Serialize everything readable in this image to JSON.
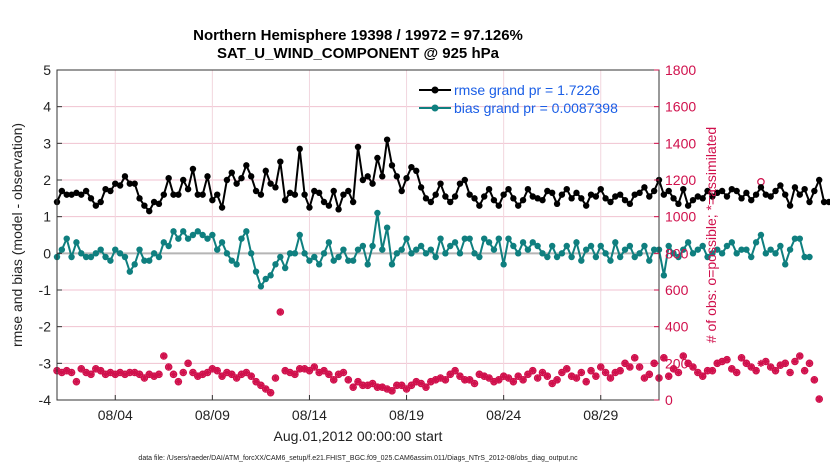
{
  "chart_data": {
    "type": "line",
    "title": "Northern Hemisphere 19398 / 19972 = 97.126%",
    "subtitle": "SAT_U_WIND_COMPONENT @ 925 hPa",
    "ylabel": "rmse and bias (model - observation)",
    "y2label": "# of obs: o=possible; *=assimilated",
    "xlabel": "Aug.01,2012 00:00:00 start",
    "footnote": "data file: /Users/raeder/DAI/ATM_forcXX/CAM6_setup/f.e21.FHIST_BGC.f09_025.CAM6assim.011/Diags_NTrS_2012-08/obs_diag_output.nc",
    "xlim": [
      1,
      32
    ],
    "ylim": [
      -4,
      5
    ],
    "y2lim": [
      0,
      1800
    ],
    "yticks": [
      "-4",
      "-3",
      "-2",
      "-1",
      "0",
      "1",
      "2",
      "3",
      "4",
      "5"
    ],
    "y2ticks": [
      "0",
      "200",
      "400",
      "600",
      "800",
      "1000",
      "1200",
      "1400",
      "1600",
      "1800"
    ],
    "xticks": [
      {
        "value": 4,
        "label": "08/04"
      },
      {
        "value": 9,
        "label": "08/09"
      },
      {
        "value": 14,
        "label": "08/14"
      },
      {
        "value": 19,
        "label": "08/19"
      },
      {
        "value": 24,
        "label": "08/24"
      },
      {
        "value": 29,
        "label": "08/29"
      }
    ],
    "x_start": 1.0,
    "x_step": 0.25,
    "series": [
      {
        "name": "rmse grand pr = 1.7226",
        "color": "#000000",
        "axis": "left",
        "values": [
          1.4,
          1.7,
          1.6,
          1.6,
          1.65,
          1.6,
          1.7,
          1.5,
          1.3,
          1.4,
          1.75,
          1.7,
          1.9,
          1.85,
          2.1,
          1.9,
          1.9,
          1.5,
          1.3,
          1.15,
          1.4,
          1.35,
          1.6,
          2.05,
          1.6,
          1.6,
          2.0,
          1.75,
          2.3,
          1.6,
          1.6,
          2.1,
          1.45,
          1.6,
          1.25,
          2.0,
          2.2,
          1.9,
          2.05,
          2.4,
          2.1,
          1.7,
          1.6,
          2.25,
          1.9,
          1.8,
          2.5,
          1.45,
          1.65,
          1.6,
          2.85,
          1.6,
          1.25,
          1.7,
          1.65,
          1.4,
          1.3,
          1.7,
          1.2,
          1.6,
          1.7,
          1.4,
          2.9,
          2.0,
          2.1,
          1.9,
          2.6,
          2.1,
          3.1,
          2.4,
          2.1,
          1.7,
          2.05,
          2.35,
          2.25,
          1.8,
          1.5,
          1.4,
          1.6,
          1.9,
          1.55,
          1.4,
          1.55,
          1.9,
          2.0,
          1.6,
          1.5,
          1.3,
          1.55,
          1.75,
          1.45,
          1.3,
          1.6,
          1.75,
          1.5,
          1.3,
          1.45,
          1.75,
          1.55,
          1.5,
          1.45,
          1.7,
          1.65,
          1.35,
          1.6,
          1.75,
          1.5,
          1.65,
          1.5,
          1.3,
          1.6,
          1.55,
          1.75,
          1.5,
          1.4,
          1.55,
          1.6,
          1.45,
          1.35,
          1.6,
          1.65,
          1.8,
          1.55,
          1.7,
          2.0,
          1.6,
          1.7,
          1.5,
          1.35,
          1.75,
          1.3,
          1.45,
          1.55,
          1.5,
          1.7,
          1.55,
          1.65,
          1.7,
          1.55,
          1.75,
          1.7,
          1.5,
          1.65,
          1.45,
          1.6,
          1.8,
          1.6,
          1.55,
          1.7,
          1.85,
          1.6,
          1.3,
          1.8,
          1.6,
          1.75,
          1.4,
          1.7,
          2.0,
          1.4,
          1.4
        ]
      },
      {
        "name": "bias grand pr = 0.0087398",
        "color": "#0f7f7f",
        "axis": "left",
        "values": [
          -0.1,
          0.1,
          0.4,
          -0.1,
          0.3,
          0.0,
          -0.1,
          -0.1,
          0.0,
          0.1,
          -0.1,
          -0.2,
          0.1,
          0.0,
          -0.1,
          -0.5,
          -0.3,
          0.1,
          -0.2,
          -0.2,
          0.0,
          -0.1,
          0.3,
          0.2,
          0.6,
          0.4,
          0.6,
          0.4,
          0.5,
          0.6,
          0.5,
          0.4,
          0.5,
          0.1,
          0.3,
          0.0,
          -0.2,
          -0.3,
          0.4,
          0.6,
          0.0,
          -0.5,
          -0.9,
          -0.7,
          -0.6,
          -0.3,
          -0.1,
          -0.4,
          0.0,
          0.0,
          0.5,
          0.0,
          -0.2,
          -0.1,
          -0.3,
          0.0,
          0.3,
          -0.2,
          -0.1,
          0.1,
          -0.2,
          -0.2,
          0.1,
          0.2,
          -0.3,
          0.2,
          1.1,
          0.1,
          0.7,
          -0.3,
          0.0,
          0.1,
          0.4,
          0.0,
          0.1,
          0.2,
          0.0,
          0.1,
          -0.1,
          0.4,
          0.0,
          0.2,
          0.3,
          0.0,
          0.4,
          0.4,
          0.0,
          -0.1,
          0.4,
          0.3,
          0.1,
          0.4,
          -0.3,
          0.4,
          0.2,
          0.0,
          0.3,
          0.1,
          0.3,
          0.2,
          0.0,
          -0.1,
          0.2,
          -0.1,
          0.0,
          0.2,
          -0.1,
          0.3,
          -0.2,
          0.1,
          0.2,
          -0.1,
          0.2,
          0.0,
          -0.2,
          0.3,
          -0.1,
          0.1,
          0.2,
          -0.1,
          0.0,
          0.2,
          -0.2,
          0.1,
          0.1,
          -0.6,
          0.2,
          0.0,
          -0.1,
          0.1,
          0.3,
          0.0,
          0.1,
          0.2,
          -0.1,
          0.0,
          0.1,
          0.0,
          0.2,
          0.3,
          0.0,
          0.1,
          0.1,
          -0.1,
          0.3,
          0.5,
          0.0,
          0.1,
          0.0,
          0.2,
          -0.3,
          0.1,
          0.4,
          0.4,
          -0.1,
          -0.1
        ]
      },
      {
        "name": "# of obs assimilated",
        "color": "#d0104c",
        "axis": "right",
        "values": [
          160,
          150,
          160,
          150,
          100,
          170,
          150,
          140,
          170,
          160,
          140,
          150,
          140,
          150,
          140,
          150,
          150,
          140,
          120,
          140,
          130,
          140,
          240,
          180,
          140,
          100,
          150,
          200,
          150,
          130,
          140,
          150,
          170,
          160,
          130,
          150,
          140,
          120,
          140,
          150,
          130,
          100,
          80,
          60,
          40,
          120,
          480,
          160,
          150,
          140,
          170,
          170,
          160,
          180,
          150,
          160,
          140,
          110,
          140,
          150,
          110,
          70,
          100,
          80,
          80,
          90,
          70,
          70,
          60,
          50,
          80,
          80,
          60,
          80,
          100,
          90,
          70,
          100,
          110,
          120,
          110,
          140,
          160,
          130,
          110,
          110,
          90,
          140,
          130,
          120,
          100,
          110,
          130,
          120,
          100,
          130,
          110,
          140,
          160,
          120,
          150,
          130,
          90,
          110,
          150,
          170,
          130,
          120,
          150,
          100,
          160,
          130,
          180,
          150,
          120,
          150,
          160,
          200,
          180,
          230,
          180,
          120,
          140,
          200,
          120,
          230,
          130,
          170,
          150,
          240,
          200,
          180,
          150,
          130,
          160,
          160,
          200,
          210,
          220,
          170,
          150,
          230,
          200,
          180,
          160,
          200,
          210,
          180,
          160,
          190,
          200,
          150,
          210,
          240,
          160,
          200,
          110,
          5
        ]
      },
      {
        "name": "# of obs possible",
        "color": "#d0104c",
        "axis": "right",
        "values": [
          160,
          150,
          160,
          150,
          100,
          170,
          150,
          140,
          170,
          160,
          140,
          150,
          140,
          150,
          140,
          150,
          150,
          140,
          120,
          140,
          130,
          140,
          240,
          180,
          140,
          100,
          150,
          200,
          150,
          130,
          140,
          150,
          170,
          160,
          130,
          150,
          140,
          120,
          140,
          150,
          130,
          100,
          80,
          60,
          40,
          120,
          480,
          160,
          150,
          140,
          170,
          170,
          160,
          180,
          150,
          160,
          140,
          110,
          140,
          150,
          110,
          70,
          100,
          80,
          80,
          90,
          70,
          70,
          60,
          50,
          80,
          80,
          60,
          80,
          100,
          90,
          70,
          100,
          110,
          120,
          110,
          140,
          160,
          130,
          110,
          110,
          90,
          140,
          130,
          120,
          100,
          110,
          130,
          120,
          100,
          130,
          110,
          140,
          160,
          120,
          150,
          130,
          90,
          110,
          150,
          170,
          130,
          120,
          150,
          100,
          160,
          130,
          180,
          150,
          120,
          150,
          160,
          200,
          180,
          230,
          180,
          120,
          140,
          200,
          120,
          230,
          130,
          170,
          150,
          240,
          200,
          180,
          150,
          130,
          160,
          160,
          200,
          210,
          220,
          170,
          150,
          230,
          200,
          180,
          160,
          1190,
          210,
          180,
          160,
          190,
          200,
          150,
          210,
          240,
          160,
          200,
          110,
          5
        ]
      }
    ]
  }
}
